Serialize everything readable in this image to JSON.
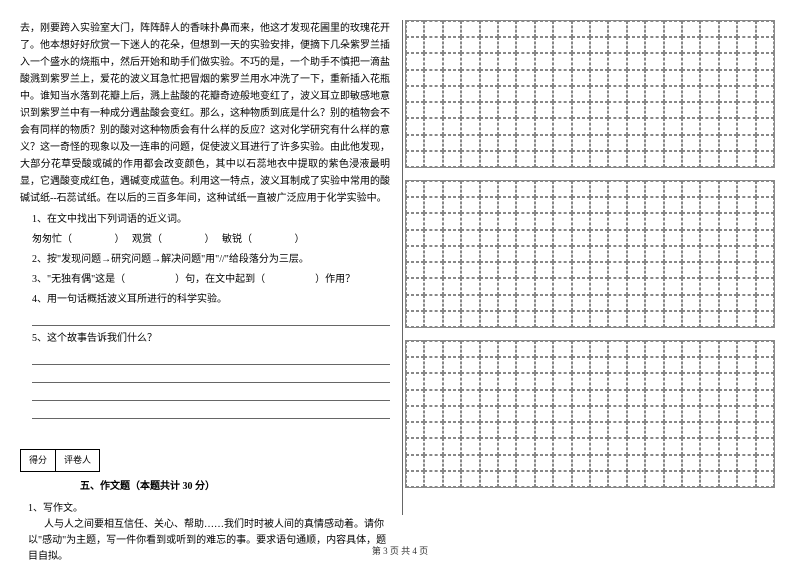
{
  "passage": {
    "text": "去，刚要跨入实验室大门，阵阵醉人的香味扑鼻而来，他这才发现花圃里的玫瑰花开了。他本想好好欣赏一下迷人的花朵，但想到一天的实验安排，便摘下几朵紫罗兰插入一个盛水的烧瓶中，然后开始和助手们做实验。不巧的是，一个助手不慎把一滴盐酸溅到紫罗兰上，爱花的波义耳急忙把冒烟的紫罗兰用水冲洗了一下，重新插入花瓶中。谁知当水落到花瓣上后，溅上盐酸的花瓣奇迹般地变红了，波义耳立即敏感地意识到紫罗兰中有一种成分遇盐酸会变红。那么，这种物质到底是什么？别的植物会不会有同样的物质？别的酸对这种物质会有什么样的反应？这对化学研究有什么样的意义？这一奇怪的现象以及一连串的问题，促使波义耳进行了许多实验。由此他发现，大部分花草受酸或碱的作用都会改变颜色，其中以石蕊地衣中提取的紫色浸液最明显，它遇酸变成红色，遇碱变成蓝色。利用这一特点，波义耳制成了实验中常用的酸碱试纸--石蕊试纸。在以后的三百多年间，这种试纸一直被广泛应用于化学实验中。"
  },
  "questions": {
    "q1_label": "1、在文中找出下列词语的近义词。",
    "q1_words": {
      "word1": "匆匆忙（",
      "word2": "观赏（",
      "word3": "敏锐（"
    },
    "q2": "2、按\"发现问题→研究问题→解决问题\"用\"//\"给段落分为三层。",
    "q3": "3、\"无独有偶\"这是（　　　　　）句，在文中起到（　　　　　）作用？",
    "q4": "4、用一句话概括波义耳所进行的科学实验。",
    "q5": "5、这个故事告诉我们什么？"
  },
  "score_labels": {
    "score": "得分",
    "reviewer": "评卷人"
  },
  "section": {
    "title": "五、作文题（本题共计 30 分）",
    "prompt_num": "1、写作文。",
    "prompt_text": "人与人之间要相互信任、关心、帮助……我们时时被人间的真情感动着。请你以\"感动\"为主题，写一件你看到或听到的难忘的事。要求语句通顺，内容具体，题目自拟。"
  },
  "footer": "第 3 页 共 4 页",
  "colors": {
    "text": "#000000",
    "bg": "#ffffff",
    "grid_border": "#888888",
    "line": "#666666"
  }
}
